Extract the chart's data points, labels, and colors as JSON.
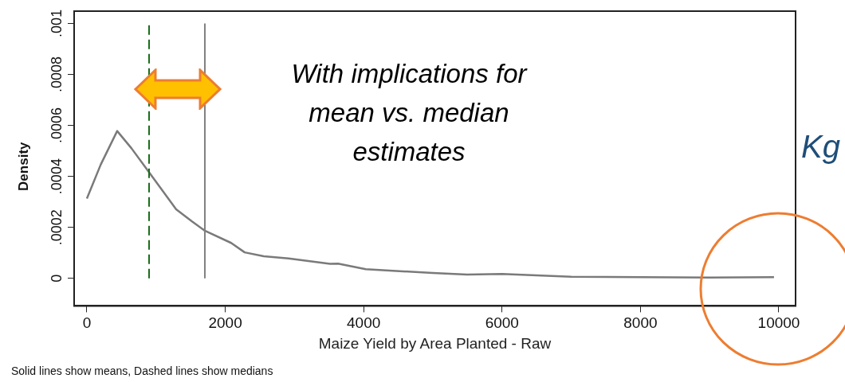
{
  "chart_data": {
    "type": "line",
    "ylabel": "Density",
    "xlabel": "Maize Yield by Area Planted - Raw",
    "x": [
      0,
      200,
      438,
      645,
      899,
      1290,
      1520,
      1705,
      2085,
      2281,
      2557,
      2915,
      3513,
      3630,
      4030,
      5000,
      5495,
      6000,
      7000,
      8000,
      9000,
      9930
    ],
    "series": [
      {
        "color": "#7a7a7a",
        "values": [
          0.000313,
          0.000446,
          0.000578,
          0.00051,
          0.000416,
          0.000271,
          0.000223,
          0.000187,
          0.000139,
          0.000102,
          8.7e-05,
          7.8e-05,
          5.7e-05,
          5.8e-05,
          3.6e-05,
          2.1e-05,
          1.5e-05,
          1.7e-05,
          6e-06,
          5e-06,
          3e-06,
          5e-06
        ]
      }
    ],
    "xlim": [
      -184,
      10242
    ],
    "xticks": [
      0,
      2000,
      4000,
      6000,
      8000,
      10000
    ],
    "ylim": [
      -0.000108,
      0.001048
    ],
    "yticks": [
      0,
      {
        "value": 0.0002,
        "label": ".0002"
      },
      {
        "value": 0.0004,
        "label": ".0004"
      },
      {
        "value": 0.0006,
        "label": ".0006"
      },
      {
        "value": 0.0008,
        "label": ".0008"
      },
      {
        "value": 0.001,
        "label": ".001"
      }
    ],
    "ref_lines": [
      {
        "axis": "x",
        "value": 899,
        "color": "#1a6e1a",
        "line_style": "dashed"
      },
      {
        "axis": "x",
        "value": 1705,
        "color": "#808080",
        "line_style": "solid"
      }
    ],
    "annotations": [
      "With implications for mean vs. median estimates",
      "Kg",
      "Solid lines show means, Dashed lines show medians"
    ],
    "grid": false,
    "legend": false,
    "marker": "none",
    "line_style": "solid"
  }
}
